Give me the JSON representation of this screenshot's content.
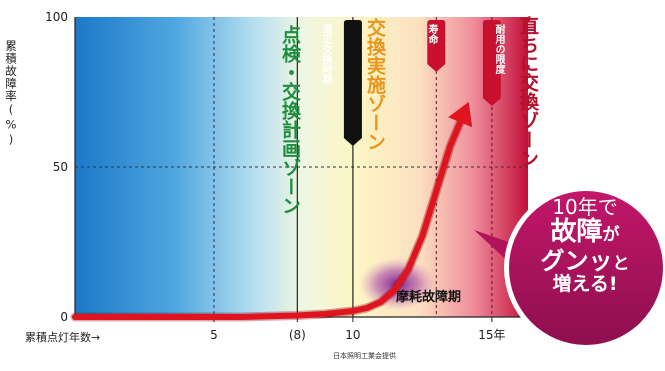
{
  "chart_data": {
    "type": "line",
    "ylabel": "累積故障率(%)",
    "xlabel": "累積点灯年数→",
    "ylim": [
      0,
      100
    ],
    "y_ticks": [
      "0",
      "50",
      "100"
    ],
    "x_ticks": [
      {
        "value": 5,
        "label": "5"
      },
      {
        "value": 8,
        "label": "(8)"
      },
      {
        "value": 10,
        "label": "10"
      },
      {
        "value": 15,
        "label": "15年"
      }
    ],
    "series": [
      {
        "x": [
          0,
          2,
          4,
          6,
          8,
          9,
          10,
          10.5,
          11,
          11.5,
          12,
          12.5,
          13,
          13.5,
          14
        ],
        "y": [
          0,
          0,
          0,
          0,
          0.5,
          1,
          2,
          3,
          5,
          9,
          16,
          27,
          42,
          57,
          68
        ]
      }
    ],
    "zones": [
      {
        "label": "点検・交換計画ゾーン",
        "color": "#1e8f3e"
      },
      {
        "label": "交換実施ゾーン",
        "color": "#e8961c"
      },
      {
        "label": "直ちに交換ゾーン",
        "color": "#c8102e"
      }
    ],
    "markers": [
      {
        "x": 10,
        "label": "適正交換時期",
        "color": "#111111"
      },
      {
        "x": 13,
        "label": "寿命",
        "color": "#c8102e"
      },
      {
        "x": 15,
        "label": "耐用の限度",
        "color": "#c8102e"
      }
    ],
    "annotations": {
      "wear": "摩耗故障期",
      "source": "日本照明工業会提供"
    },
    "bubble": {
      "line1": "10年で",
      "line2a": "故障",
      "line2b": "が",
      "line3a": "グンッ",
      "line3b": "と",
      "line4": "増える!"
    },
    "colors": {
      "blue": "#1d7fcf",
      "yellow": "#fdf4bf",
      "red": "#c8102e",
      "curve": "#e0141e",
      "bubble": "#b0135a"
    }
  }
}
